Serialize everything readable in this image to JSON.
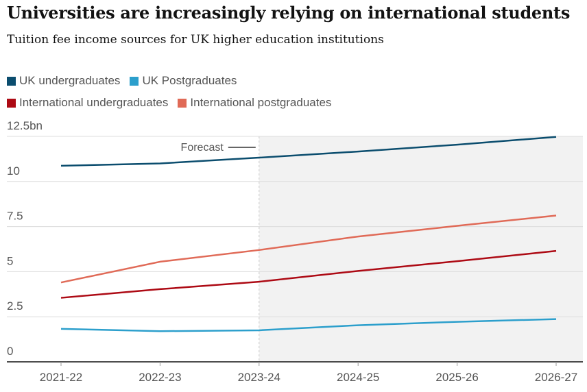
{
  "title": "Universities are increasingly relying on international students",
  "subtitle": "Tuition fee income sources for UK higher education institutions",
  "chart_data": {
    "type": "line",
    "title": "Universities are increasingly relying on international students",
    "subtitle": "Tuition fee income sources for UK higher education institutions",
    "x": [
      "2021-22",
      "2022-23",
      "2023-24",
      "2024-25",
      "2025-26",
      "2026-27"
    ],
    "yticks": [
      "0",
      "2.5",
      "5",
      "7.5",
      "10",
      "12.5bn"
    ],
    "ytick_values": [
      0,
      2.5,
      5,
      7.5,
      10,
      12.5
    ],
    "ylim": [
      0,
      12.5
    ],
    "grid": true,
    "legend_placement": "top-left",
    "annotation": "Forecast",
    "forecast_from": "2023-24",
    "series": [
      {
        "name": "UK undergraduates",
        "color": "#0b4d6e",
        "values": [
          10.87,
          11.0,
          11.32,
          11.66,
          12.04,
          12.47
        ]
      },
      {
        "name": "UK Postgraduates",
        "color": "#2c9fcc",
        "values": [
          1.83,
          1.7,
          1.75,
          2.03,
          2.22,
          2.37
        ]
      },
      {
        "name": "International undergraduates",
        "color": "#ad0a14",
        "values": [
          3.55,
          4.03,
          4.44,
          5.04,
          5.58,
          6.15
        ]
      },
      {
        "name": "International postgraduates",
        "color": "#e06a57",
        "values": [
          4.4,
          5.55,
          6.2,
          6.95,
          7.54,
          8.11
        ]
      }
    ]
  }
}
